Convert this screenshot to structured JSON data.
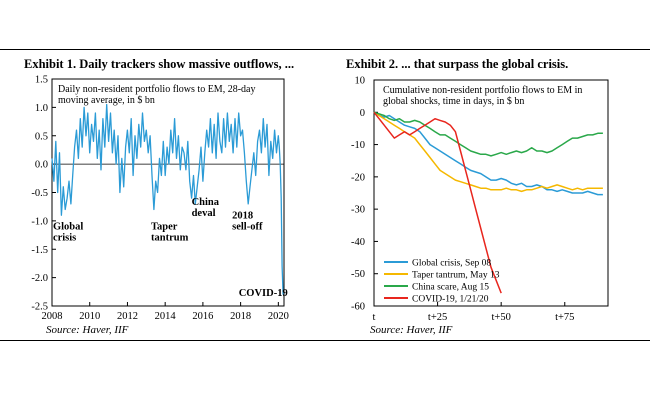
{
  "exhibits": [
    {
      "title": "Exhibit  1. Daily trackers show massive outflows, ...",
      "source": "Source: Haver, IIF"
    },
    {
      "title": "Exhibit  2. ... that surpass the global crisis.",
      "source": "Source: Haver, IIF"
    }
  ],
  "chart_data": [
    {
      "type": "line",
      "title": "Daily non-resident portfolio flows to EM, 28-day moving average, in $ bn",
      "title_lines": [
        "Daily non-resident portfolio flows to EM, 28-day",
        "moving average, in $ bn"
      ],
      "xlim": [
        2008,
        2020.3
      ],
      "ylim": [
        -2.5,
        1.5
      ],
      "x_ticks": [
        "2008",
        "2010",
        "2012",
        "2014",
        "2016",
        "2018",
        "2020"
      ],
      "y_ticks": [
        "1.5",
        "1.0",
        "0.5",
        "0.0",
        "-0.5",
        "-1.0",
        "-1.5",
        "-2.0",
        "-2.5"
      ],
      "grid": false,
      "color": "#2b9bd6",
      "annotations": [
        {
          "lines": [
            "Global",
            "crisis"
          ],
          "x": 2008.05,
          "y": -1.15
        },
        {
          "lines": [
            "Taper",
            "tantrum"
          ],
          "x": 2013.25,
          "y": -1.15
        },
        {
          "lines": [
            "China",
            "deval"
          ],
          "x": 2015.4,
          "y": -0.72
        },
        {
          "lines": [
            "2018",
            "sell-off"
          ],
          "x": 2017.55,
          "y": -0.96
        },
        {
          "lines": [
            "COVID-19"
          ],
          "x": 2017.9,
          "y": -2.32
        }
      ],
      "series": [
        {
          "x": [
            2008.0,
            2008.1,
            2008.2,
            2008.3,
            2008.4,
            2008.5,
            2008.6,
            2008.7,
            2008.8,
            2008.9,
            2009.0,
            2009.1,
            2009.2,
            2009.3,
            2009.4,
            2009.5,
            2009.6,
            2009.7,
            2009.8,
            2009.9,
            2010.0,
            2010.1,
            2010.2,
            2010.3,
            2010.4,
            2010.5,
            2010.6,
            2010.7,
            2010.8,
            2010.9,
            2011.0,
            2011.1,
            2011.2,
            2011.3,
            2011.4,
            2011.5,
            2011.6,
            2011.7,
            2011.8,
            2011.9,
            2012.0,
            2012.1,
            2012.2,
            2012.3,
            2012.4,
            2012.5,
            2012.6,
            2012.7,
            2012.8,
            2012.9,
            2013.0,
            2013.1,
            2013.2,
            2013.3,
            2013.4,
            2013.5,
            2013.6,
            2013.7,
            2013.8,
            2013.9,
            2014.0,
            2014.1,
            2014.2,
            2014.3,
            2014.4,
            2014.5,
            2014.6,
            2014.7,
            2014.8,
            2014.9,
            2015.0,
            2015.1,
            2015.2,
            2015.3,
            2015.4,
            2015.5,
            2015.6,
            2015.7,
            2015.8,
            2015.9,
            2016.0,
            2016.1,
            2016.2,
            2016.3,
            2016.4,
            2016.5,
            2016.6,
            2016.7,
            2016.8,
            2016.9,
            2017.0,
            2017.1,
            2017.2,
            2017.3,
            2017.4,
            2017.5,
            2017.6,
            2017.7,
            2017.8,
            2017.9,
            2018.0,
            2018.1,
            2018.2,
            2018.3,
            2018.4,
            2018.5,
            2018.6,
            2018.7,
            2018.8,
            2018.9,
            2019.0,
            2019.1,
            2019.2,
            2019.3,
            2019.4,
            2019.5,
            2019.6,
            2019.7,
            2019.8,
            2019.9,
            2020.0,
            2020.05,
            2020.1,
            2020.15,
            2020.2,
            2020.25
          ],
          "y": [
            0.1,
            -0.3,
            0.4,
            -0.5,
            0.2,
            -0.9,
            -0.4,
            -0.8,
            -0.6,
            -0.3,
            -0.7,
            -0.2,
            0.3,
            0.6,
            0.1,
            0.8,
            0.3,
            1.0,
            0.5,
            0.9,
            0.2,
            0.7,
            0.4,
            0.9,
            0.1,
            0.6,
            -0.1,
            0.8,
            0.3,
            1.05,
            0.4,
            0.9,
            0.2,
            0.6,
            0.0,
            0.5,
            -0.5,
            0.1,
            -0.4,
            0.3,
            0.6,
            0.2,
            0.8,
            -0.2,
            0.5,
            0.1,
            0.7,
            0.3,
            0.9,
            0.4,
            0.6,
            0.2,
            0.5,
            -0.2,
            -0.8,
            -0.3,
            -0.5,
            0.1,
            -0.2,
            0.4,
            -0.2,
            0.3,
            0.0,
            0.6,
            0.2,
            0.8,
            0.1,
            0.5,
            -0.1,
            0.3,
            0.2,
            -0.1,
            0.4,
            -0.3,
            -0.6,
            -0.2,
            -0.7,
            -0.4,
            -0.1,
            0.3,
            -0.3,
            0.2,
            0.6,
            0.3,
            0.8,
            0.2,
            0.7,
            0.1,
            0.9,
            0.4,
            0.2,
            0.8,
            0.3,
            0.9,
            0.4,
            0.7,
            0.2,
            0.8,
            0.3,
            0.9,
            0.5,
            0.6,
            0.2,
            -0.3,
            -0.7,
            -0.4,
            -0.1,
            0.2,
            -0.2,
            0.4,
            0.6,
            0.2,
            0.8,
            0.3,
            0.7,
            -0.2,
            0.4,
            0.1,
            0.6,
            0.2,
            0.5,
            0.3,
            0.0,
            -0.6,
            -1.8,
            -2.3
          ]
        }
      ]
    },
    {
      "type": "line",
      "title": "Cumulative non-resident portfolio flows to EM in global shocks, time in days, in $ bn",
      "title_lines": [
        "Cumulative non-resident portfolio flows to EM in",
        "global shocks, time in days, in $ bn"
      ],
      "xlim": [
        0,
        92
      ],
      "ylim": [
        -60,
        10
      ],
      "x_ticks": [
        {
          "value": 0,
          "label": "t"
        },
        {
          "value": 25,
          "label": "t+25"
        },
        {
          "value": 50,
          "label": "t+50"
        },
        {
          "value": 75,
          "label": "t+75"
        }
      ],
      "y_ticks": [
        "10",
        "0",
        "-10",
        "-20",
        "-30",
        "-40",
        "-50",
        "-60"
      ],
      "grid": false,
      "legend_position": "bottom-left",
      "series": [
        {
          "name": "Global crisis, Sep 08",
          "color": "#2b9bd6",
          "x": [
            0,
            2,
            4,
            6,
            8,
            10,
            12,
            14,
            16,
            18,
            20,
            22,
            24,
            26,
            28,
            30,
            32,
            34,
            36,
            38,
            40,
            42,
            44,
            46,
            48,
            50,
            52,
            54,
            56,
            58,
            60,
            62,
            64,
            66,
            68,
            70,
            72,
            74,
            76,
            78,
            80,
            82,
            84,
            86,
            88,
            90
          ],
          "y": [
            0,
            -1,
            -1.5,
            -1,
            -2,
            -3,
            -4,
            -4.5,
            -5,
            -6,
            -8,
            -10,
            -11,
            -12,
            -13,
            -14,
            -15,
            -16,
            -17,
            -18,
            -18.5,
            -19,
            -20,
            -21,
            -21,
            -20.5,
            -21,
            -22,
            -22.5,
            -22,
            -23,
            -23,
            -22.5,
            -23,
            -24,
            -24,
            -24.5,
            -24,
            -24.5,
            -25,
            -25,
            -25,
            -24.5,
            -25,
            -25.5,
            -25.5
          ]
        },
        {
          "name": "Taper tantrum, May 13",
          "color": "#f5b800",
          "x": [
            0,
            2,
            4,
            6,
            8,
            10,
            12,
            14,
            16,
            18,
            20,
            22,
            24,
            26,
            28,
            30,
            32,
            34,
            36,
            38,
            40,
            42,
            44,
            46,
            48,
            50,
            52,
            54,
            56,
            58,
            60,
            62,
            64,
            66,
            68,
            70,
            72,
            74,
            76,
            78,
            80,
            82,
            84,
            86,
            88,
            90
          ],
          "y": [
            0,
            -1,
            -2,
            -3,
            -4,
            -5,
            -6,
            -7,
            -8,
            -10,
            -12,
            -14,
            -16,
            -18,
            -19,
            -20,
            -21,
            -21.5,
            -22,
            -22.5,
            -23,
            -23.5,
            -23.5,
            -24,
            -24,
            -24,
            -23.5,
            -24,
            -24,
            -24.5,
            -24,
            -24,
            -23.5,
            -23,
            -23.5,
            -23,
            -22.5,
            -23,
            -23.5,
            -24,
            -23.5,
            -24,
            -23.5,
            -23.5,
            -23.5,
            -23.5
          ]
        },
        {
          "name": "China scare, Aug 15",
          "color": "#2aa84a",
          "x": [
            0,
            2,
            4,
            6,
            8,
            10,
            12,
            14,
            16,
            18,
            20,
            22,
            24,
            26,
            28,
            30,
            32,
            34,
            36,
            38,
            40,
            42,
            44,
            46,
            48,
            50,
            52,
            54,
            56,
            58,
            60,
            62,
            64,
            66,
            68,
            70,
            72,
            74,
            76,
            78,
            80,
            82,
            84,
            86,
            88,
            90
          ],
          "y": [
            0,
            -0.5,
            -1,
            -2,
            -2.5,
            -2,
            -3,
            -3,
            -2.5,
            -3,
            -4,
            -5,
            -6,
            -7,
            -7,
            -8,
            -9,
            -10,
            -11,
            -12,
            -12.5,
            -13,
            -13,
            -13.5,
            -13,
            -12.5,
            -13,
            -12.5,
            -12,
            -12.5,
            -12,
            -11,
            -12,
            -12,
            -12.5,
            -12,
            -11,
            -10,
            -9,
            -8,
            -8,
            -7.5,
            -7,
            -7,
            -6.5,
            -6.5
          ]
        },
        {
          "name": "COVID-19, 1/21/20",
          "color": "#e8261e",
          "x": [
            0,
            2,
            4,
            6,
            8,
            10,
            12,
            14,
            16,
            18,
            20,
            22,
            24,
            26,
            28,
            30,
            32,
            34,
            36,
            38,
            40,
            42,
            44,
            46,
            48,
            50
          ],
          "y": [
            0,
            -2,
            -4,
            -6,
            -8,
            -7,
            -6,
            -7,
            -6,
            -5,
            -4,
            -3,
            -2,
            -2.5,
            -3,
            -4,
            -6,
            -12,
            -18,
            -24,
            -30,
            -36,
            -42,
            -48,
            -52,
            -56
          ]
        }
      ]
    }
  ]
}
